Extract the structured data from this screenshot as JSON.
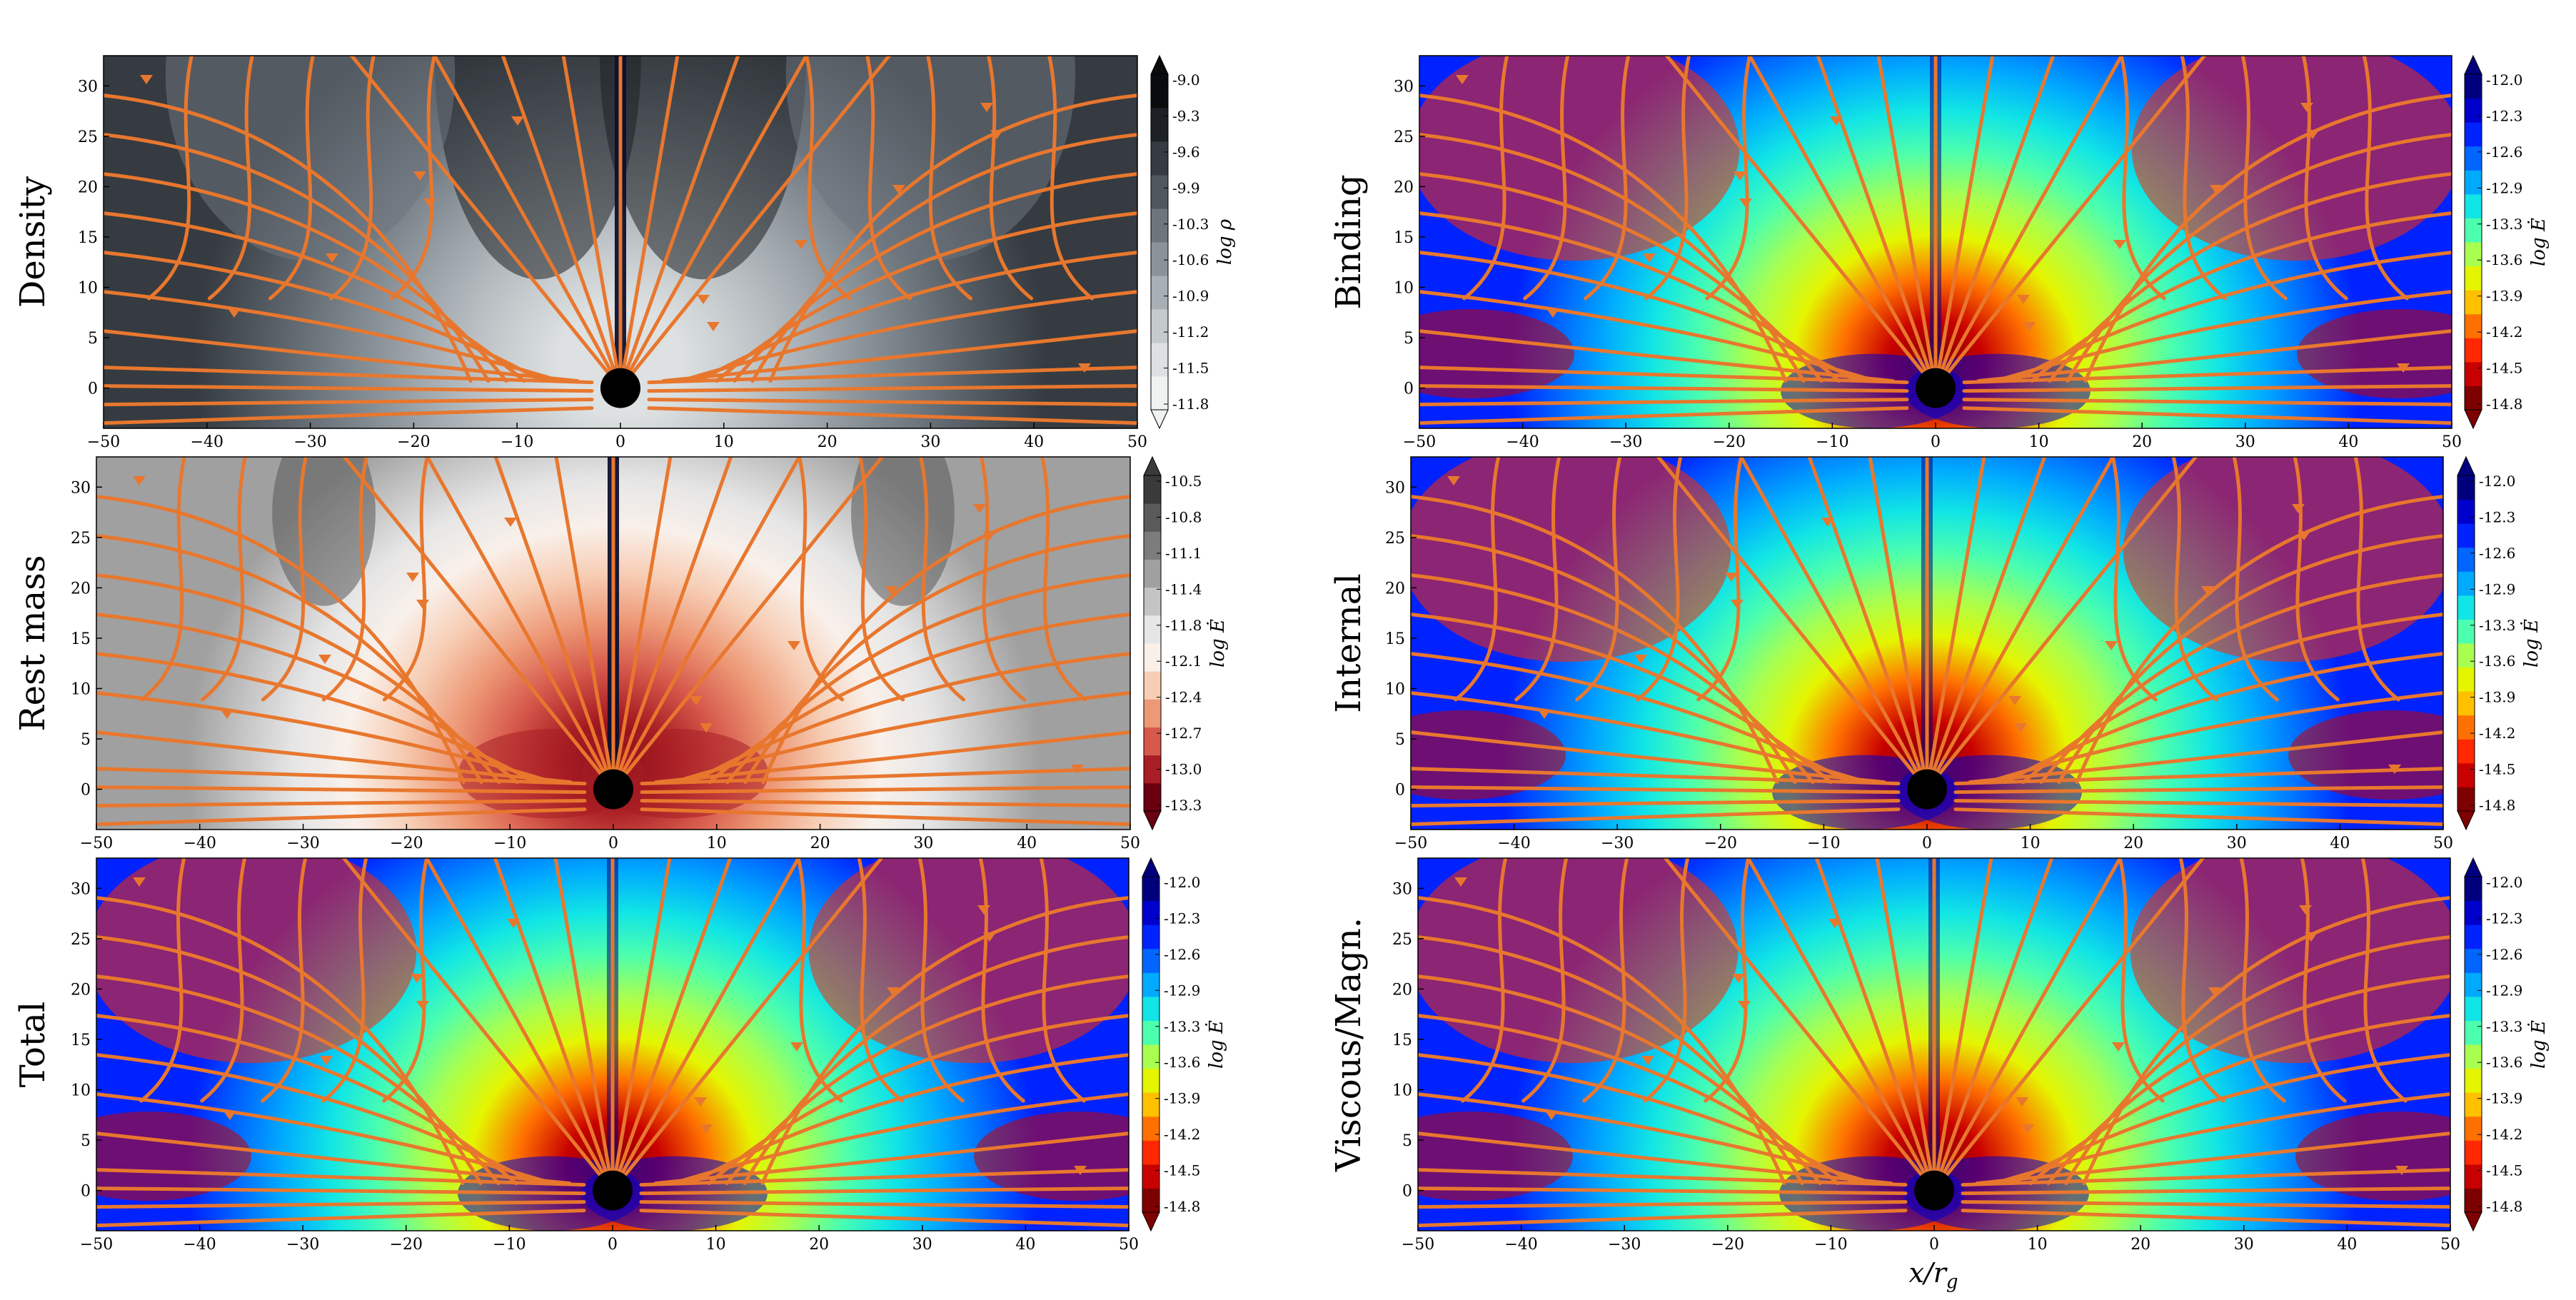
{
  "chart_data": [
    {
      "type": "heatmap",
      "row_label": "Density",
      "colormap": "gray",
      "colorbar_label": "log ρ",
      "colorbar_ticks": [
        "-9.0",
        "-9.3",
        "-9.6",
        "-9.9",
        "-10.3",
        "-10.6",
        "-10.9",
        "-11.2",
        "-11.5",
        "-11.8"
      ],
      "xticks": [
        "−50",
        "−40",
        "−30",
        "−20",
        "−10",
        "0",
        "10",
        "20",
        "30",
        "40",
        "50"
      ],
      "yticks": [
        "0",
        "5",
        "10",
        "15",
        "20",
        "25",
        "30"
      ],
      "xlim": [
        -50,
        50
      ],
      "ylim": [
        -4,
        33
      ],
      "streamlines": true,
      "black_hole_center": [
        0,
        0
      ]
    },
    {
      "type": "heatmap",
      "row_label": "Binding",
      "colormap": "jet",
      "colorbar_label": "log Ė",
      "colorbar_ticks": [
        "-12.0",
        "-12.3",
        "-12.6",
        "-12.9",
        "-13.3",
        "-13.6",
        "-13.9",
        "-14.2",
        "-14.5",
        "-14.8"
      ],
      "xticks": [
        "−50",
        "−40",
        "−30",
        "−20",
        "−10",
        "0",
        "10",
        "20",
        "30",
        "40",
        "50"
      ],
      "yticks": [
        "0",
        "5",
        "10",
        "15",
        "20",
        "25",
        "30"
      ],
      "xlim": [
        -50,
        50
      ],
      "ylim": [
        -4,
        33
      ],
      "streamlines": true,
      "black_hole_center": [
        0,
        0
      ]
    },
    {
      "type": "heatmap",
      "row_label": "Rest mass",
      "colormap": "red-white-gray",
      "colorbar_label": "log Ė",
      "colorbar_ticks": [
        "-10.5",
        "-10.8",
        "-11.1",
        "-11.4",
        "-11.8",
        "-12.1",
        "-12.4",
        "-12.7",
        "-13.0",
        "-13.3"
      ],
      "xticks": [
        "−50",
        "−40",
        "−30",
        "−20",
        "−10",
        "0",
        "10",
        "20",
        "30",
        "40",
        "50"
      ],
      "yticks": [
        "0",
        "5",
        "10",
        "15",
        "20",
        "25",
        "30"
      ],
      "xlim": [
        -50,
        50
      ],
      "ylim": [
        -4,
        33
      ],
      "streamlines": true,
      "black_hole_center": [
        0,
        0
      ]
    },
    {
      "type": "heatmap",
      "row_label": "Internal",
      "colormap": "jet",
      "colorbar_label": "log Ė",
      "colorbar_ticks": [
        "-12.0",
        "-12.3",
        "-12.6",
        "-12.9",
        "-13.3",
        "-13.6",
        "-13.9",
        "-14.2",
        "-14.5",
        "-14.8"
      ],
      "xticks": [
        "−50",
        "−40",
        "−30",
        "−20",
        "−10",
        "0",
        "10",
        "20",
        "30",
        "40",
        "50"
      ],
      "yticks": [
        "0",
        "5",
        "10",
        "15",
        "20",
        "25",
        "30"
      ],
      "xlim": [
        -50,
        50
      ],
      "ylim": [
        -4,
        33
      ],
      "streamlines": true,
      "black_hole_center": [
        0,
        0
      ]
    },
    {
      "type": "heatmap",
      "row_label": "Total",
      "colormap": "jet",
      "colorbar_label": "log Ė",
      "colorbar_ticks": [
        "-12.0",
        "-12.3",
        "-12.6",
        "-12.9",
        "-13.3",
        "-13.6",
        "-13.9",
        "-14.2",
        "-14.5",
        "-14.8"
      ],
      "xticks": [
        "−50",
        "−40",
        "−30",
        "−20",
        "−10",
        "0",
        "10",
        "20",
        "30",
        "40",
        "50"
      ],
      "yticks": [
        "0",
        "5",
        "10",
        "15",
        "20",
        "25",
        "30"
      ],
      "xlim": [
        -50,
        50
      ],
      "ylim": [
        -4,
        33
      ],
      "streamlines": true,
      "black_hole_center": [
        0,
        0
      ]
    },
    {
      "type": "heatmap",
      "row_label": "Viscous/Magn.",
      "colormap": "jet",
      "colorbar_label": "log Ė",
      "colorbar_ticks": [
        "-12.0",
        "-12.3",
        "-12.6",
        "-12.9",
        "-13.3",
        "-13.6",
        "-13.9",
        "-14.2",
        "-14.5",
        "-14.8"
      ],
      "xticks": [
        "−50",
        "−40",
        "−30",
        "−20",
        "−10",
        "0",
        "10",
        "20",
        "30",
        "40",
        "50"
      ],
      "yticks": [
        "0",
        "5",
        "10",
        "15",
        "20",
        "25",
        "30"
      ],
      "xlim": [
        -50,
        50
      ],
      "ylim": [
        -4,
        33
      ],
      "streamlines": true,
      "black_hole_center": [
        0,
        0
      ]
    }
  ],
  "xlabel": "x/r",
  "xlabel_sub": "g",
  "colors": {
    "streamline": "#e8772e",
    "black_hole": "#000000"
  }
}
